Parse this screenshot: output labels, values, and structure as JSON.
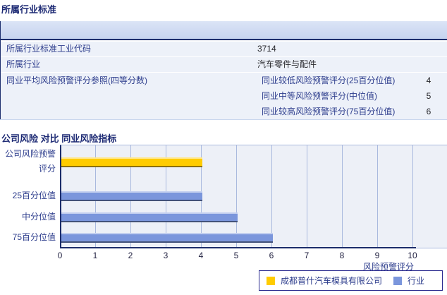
{
  "sections": {
    "industry_standard": {
      "title": "所属行业标准"
    },
    "risk_comparison": {
      "title": "公司风险 对比 同业风险指标"
    }
  },
  "table": {
    "rows": [
      {
        "label": "所属行业标准工业代码",
        "value": "3714"
      },
      {
        "label": "所属行业",
        "value": "汽车零件与配件"
      },
      {
        "label": "同业平均风险预警评分参照(四等分数)",
        "subrows": [
          {
            "label": "同业较低风险预警评分(25百分位值)",
            "value": "4"
          },
          {
            "label": "同业中等风险预警评分(中位值)",
            "value": "5"
          },
          {
            "label": "同业较高风险预警评分(75百分位值)",
            "value": "6"
          }
        ]
      }
    ]
  },
  "chart_data": {
    "type": "bar",
    "orientation": "horizontal",
    "categories": [
      "公司风险预警评分",
      "25百分位值",
      "中分位值",
      "75百分位值"
    ],
    "bar_values": [
      4,
      4,
      5,
      6
    ],
    "series": [
      {
        "name": "成都普什汽车模具有限公司",
        "color": "#FFCC00",
        "values": [
          4,
          null,
          null,
          null
        ]
      },
      {
        "name": "行业",
        "color": "#7B96DC",
        "values": [
          null,
          4,
          5,
          6
        ]
      }
    ],
    "xlabel": "风险预警评分",
    "xlim": [
      0,
      10
    ],
    "xticks": [
      0,
      1,
      2,
      3,
      4,
      5,
      6,
      7,
      8,
      9,
      10
    ],
    "grid": true,
    "legend_position": "bottom-right",
    "plot_bg": "#EDF0F7",
    "gridline_color": "#A9B9DE",
    "axis_color": "#1C2D6B"
  },
  "colors": {
    "section_title": "#1D2A74",
    "table_header_bg": "#C9D7F0",
    "table_row_bg": "#EDF1F9",
    "label_text": "#2C3C8C",
    "value_text": "#26262B"
  }
}
